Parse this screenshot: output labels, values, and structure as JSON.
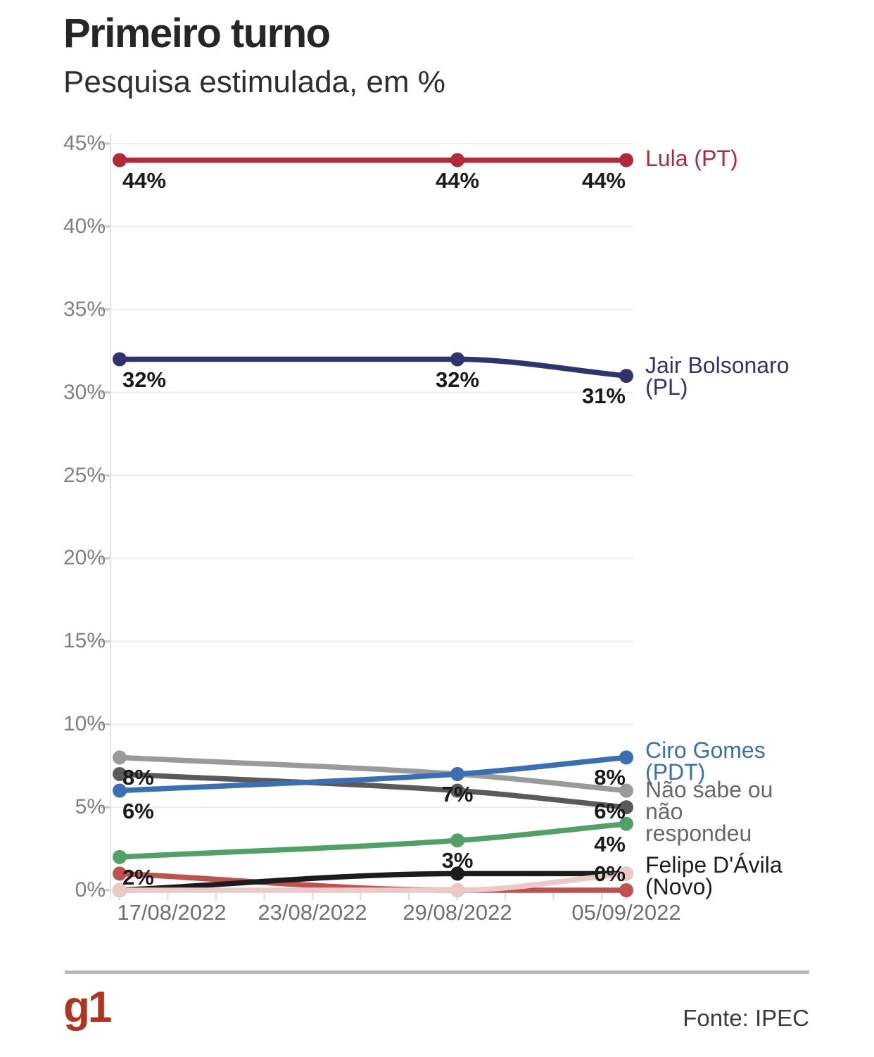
{
  "header": {
    "title": "Primeiro turno",
    "subtitle": "Pesquisa estimulada, em %"
  },
  "chart_data": {
    "type": "line",
    "title": "Primeiro turno",
    "subtitle": "Pesquisa estimulada, em %",
    "x_tick_labels": [
      "17/08/2022",
      "23/08/2022",
      "29/08/2022",
      "05/09/2022"
    ],
    "x_dates_with_data": [
      "17/08/2022",
      "29/08/2022",
      "05/09/2022"
    ],
    "data_point_tick_indices": [
      0,
      2,
      3
    ],
    "y_axis": {
      "min": 0,
      "max": 45,
      "step": 5,
      "tick_labels": [
        "0%",
        "5%",
        "10%",
        "15%",
        "20%",
        "25%",
        "30%",
        "35%",
        "40%",
        "45%"
      ]
    },
    "grid": true,
    "legend_position": "right",
    "series": [
      {
        "id": "dark-gray-line",
        "color": "#5a5a5a",
        "values": [
          7,
          6,
          5
        ],
        "point_labels": [
          null,
          null,
          null
        ],
        "legend": null
      },
      {
        "id": "nao-sabe-ou-nao-respondeu",
        "color": "#9a9a9a",
        "values": [
          8,
          7,
          6
        ],
        "point_labels": [
          "8%",
          "7%",
          "6%"
        ],
        "legend": {
          "lines": [
            "Não sabe ou",
            "não",
            "respondeu"
          ],
          "color": "#686868"
        }
      },
      {
        "id": "green-line",
        "color": "#51a166",
        "values": [
          2,
          3,
          4
        ],
        "point_labels": [
          "2%",
          "3%",
          "4%"
        ],
        "legend": null
      },
      {
        "id": "dark-red-line",
        "color": "#c1514f",
        "values": [
          1,
          0,
          0
        ],
        "point_labels": [
          null,
          null,
          "0%"
        ],
        "legend": null
      },
      {
        "id": "felipe-davila-novo",
        "color": "#1c1c1c",
        "values": [
          0,
          1,
          1
        ],
        "point_labels": [
          null,
          null,
          null
        ],
        "legend": {
          "lines": [
            "Felipe D'Ávila",
            "(Novo)"
          ],
          "color": "#1f1f1f"
        }
      },
      {
        "id": "pink-line",
        "color": "#eac9c7",
        "values": [
          0,
          0,
          1
        ],
        "point_labels": [
          null,
          null,
          null
        ],
        "legend": null
      },
      {
        "id": "ciro-gomes-pdt",
        "color": "#3b6fb4",
        "values": [
          6,
          7,
          8
        ],
        "point_labels": [
          "6%",
          null,
          "8%"
        ],
        "legend": {
          "lines": [
            "Ciro Gomes",
            "(PDT)"
          ],
          "color": "#3b6fb4"
        }
      },
      {
        "id": "jair-bolsonaro-pl",
        "color": "#313370",
        "values": [
          32,
          32,
          31
        ],
        "point_labels": [
          "32%",
          "32%",
          "31%"
        ],
        "legend": {
          "lines": [
            "Jair Bolsonaro",
            "(PL)"
          ],
          "color": "#313370"
        }
      },
      {
        "id": "lula-pt",
        "color": "#b2293a",
        "values": [
          44,
          44,
          44
        ],
        "point_labels": [
          "44%",
          "44%",
          "44%"
        ],
        "legend": {
          "lines": [
            "Lula (PT)"
          ],
          "color": "#b2293a"
        }
      }
    ]
  },
  "footer": {
    "logo_text": "g1",
    "source": "Fonte: IPEC"
  }
}
